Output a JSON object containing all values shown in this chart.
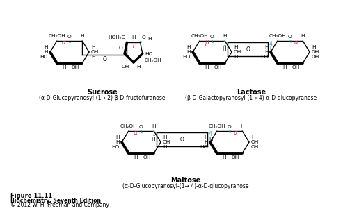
{
  "background_color": "#ffffff",
  "figure_caption": "Figure 11.11",
  "figure_book": "Biochemistry, Seventh Edition",
  "figure_copyright": "© 2012 W. H. Freeman and Company",
  "sucrose_title": "Sucrose",
  "sucrose_subtitle": "(α-D-Glucopyranosyl-(1→ 2)-β-D-fructofuranose",
  "lactose_title": "Lactose",
  "lactose_subtitle": "(β-D-Galactopyranosyl-(1→ 4)-α-D-glucopyranose",
  "maltose_title": "Maltose",
  "maltose_subtitle": "(α-D-Glucopyranosyl-(1→ 4)-α-D-glucopyranose",
  "pink": "#cc3366",
  "blue": "#3399cc",
  "black": "#000000",
  "gray": "#444444"
}
